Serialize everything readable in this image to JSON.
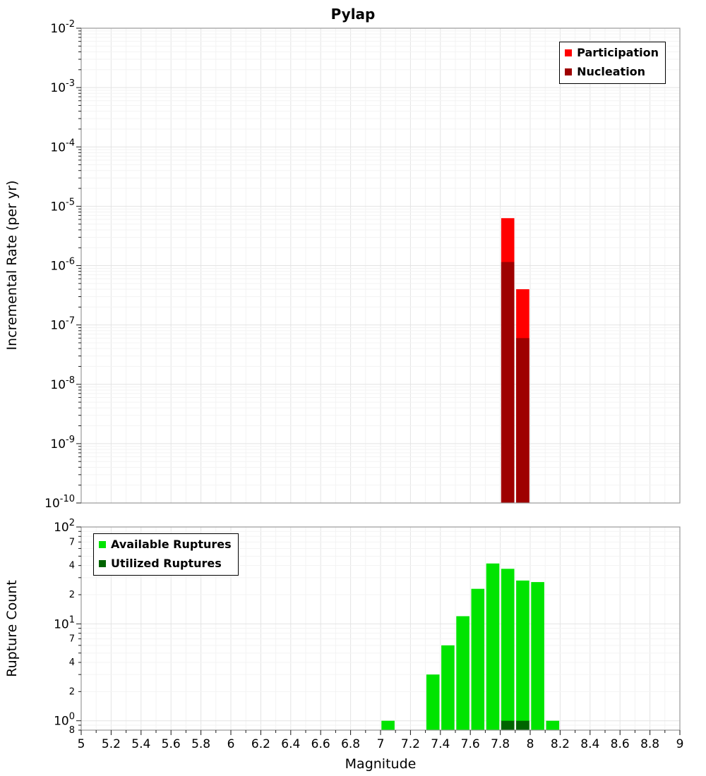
{
  "chart_data": [
    {
      "id": "incremental-rate",
      "type": "bar",
      "title": "Pylap",
      "ylabel": "Incremental Rate (per yr)",
      "xlim": [
        5,
        9
      ],
      "ylim": [
        1e-10,
        0.01
      ],
      "grid": true,
      "bin_width": 0.1,
      "legend": {
        "position": "top-right",
        "entries": [
          {
            "label": "Participation",
            "color": "#ff0000"
          },
          {
            "label": "Nucleation",
            "color": "#9e0000"
          }
        ]
      },
      "yticks_major": [
        {
          "value": 0.01,
          "exp": "-2"
        },
        {
          "value": 0.001,
          "exp": "-3"
        },
        {
          "value": 0.0001,
          "exp": "-4"
        },
        {
          "value": 1e-05,
          "exp": "-5"
        },
        {
          "value": 1e-06,
          "exp": "-6"
        },
        {
          "value": 1e-07,
          "exp": "-7"
        },
        {
          "value": 1e-08,
          "exp": "-8"
        },
        {
          "value": 1e-09,
          "exp": "-9"
        },
        {
          "value": 1e-10,
          "exp": "-10"
        }
      ],
      "series": [
        {
          "name": "Participation",
          "color": "#ff0000",
          "x": [
            7.85,
            7.95
          ],
          "y": [
            6.3e-06,
            4e-07
          ]
        },
        {
          "name": "Nucleation",
          "color": "#9e0000",
          "x": [
            7.85,
            7.95
          ],
          "y": [
            1.15e-06,
            6e-08
          ]
        }
      ]
    },
    {
      "id": "rupture-count",
      "type": "bar",
      "ylabel": "Rupture Count",
      "xlabel": "Magnitude",
      "xlim": [
        5,
        9
      ],
      "ylim": [
        0.8,
        100
      ],
      "grid": true,
      "bin_width": 0.1,
      "legend": {
        "position": "top-left",
        "entries": [
          {
            "label": "Available Ruptures",
            "color": "#00e400"
          },
          {
            "label": "Utilized Ruptures",
            "color": "#006400"
          }
        ]
      },
      "yticks_major": [
        {
          "value": 100,
          "exp": "2"
        },
        {
          "value": 10,
          "exp": "1"
        },
        {
          "value": 1,
          "exp": "0"
        }
      ],
      "yticks_minor_labeled": [
        {
          "value": 70,
          "label": "7"
        },
        {
          "value": 40,
          "label": "4"
        },
        {
          "value": 20,
          "label": "2"
        },
        {
          "value": 7,
          "label": "7"
        },
        {
          "value": 4,
          "label": "4"
        },
        {
          "value": 2,
          "label": "2"
        },
        {
          "value": 0.8,
          "label": "8"
        }
      ],
      "series": [
        {
          "name": "Available Ruptures",
          "color": "#00e400",
          "x": [
            7.05,
            7.35,
            7.45,
            7.55,
            7.65,
            7.75,
            7.85,
            7.95,
            8.05,
            8.15
          ],
          "y": [
            1,
            3,
            6,
            12,
            23,
            42,
            37,
            28,
            27,
            1
          ]
        },
        {
          "name": "Utilized Ruptures",
          "color": "#006400",
          "x": [
            7.85,
            7.95
          ],
          "y": [
            1,
            1
          ]
        }
      ]
    }
  ],
  "x_ticks": {
    "values": [
      5,
      5.2,
      5.4,
      5.6,
      5.8,
      6,
      6.2,
      6.4,
      6.6,
      6.8,
      7,
      7.2,
      7.4,
      7.6,
      7.8,
      8,
      8.2,
      8.4,
      8.6,
      8.8,
      9
    ],
    "labels": [
      "5",
      "5.2",
      "5.4",
      "5.6",
      "5.8",
      "6",
      "6.2",
      "6.4",
      "6.6",
      "6.8",
      "7",
      "7.2",
      "7.4",
      "7.6",
      "7.8",
      "8",
      "8.2",
      "8.4",
      "8.6",
      "8.8",
      "9"
    ]
  }
}
